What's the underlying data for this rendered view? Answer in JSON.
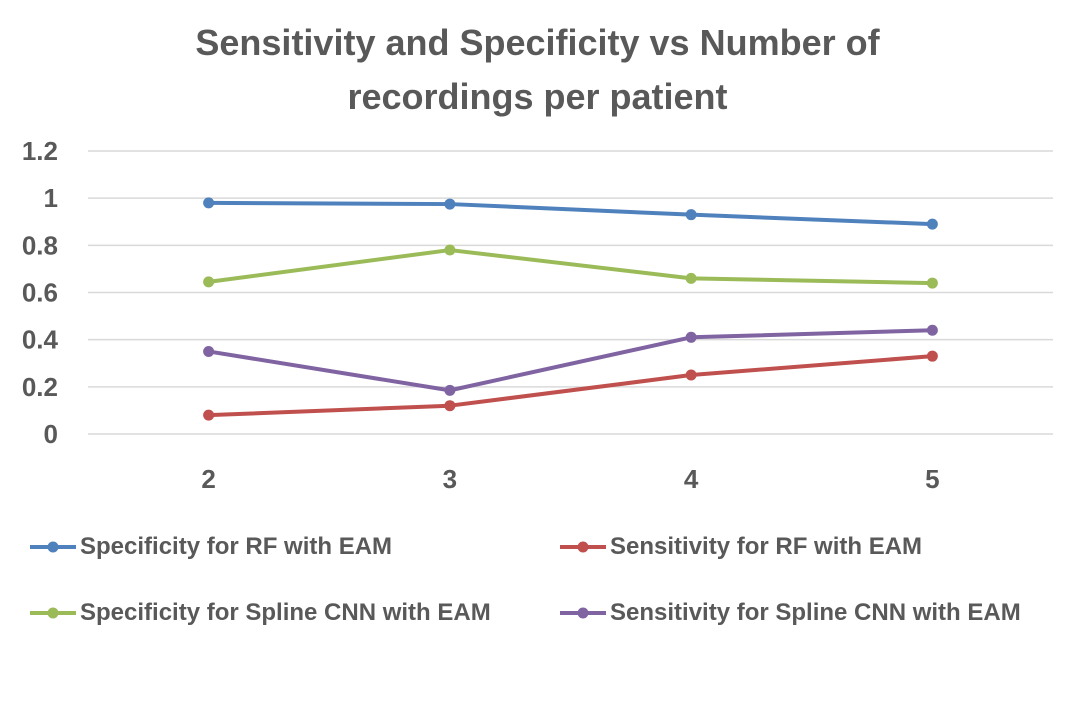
{
  "chart_data": {
    "type": "line",
    "title_line1": "Sensitivity and Specificity vs Number of",
    "title_line2": "recordings per patient",
    "categories": [
      "2",
      "3",
      "4",
      "5"
    ],
    "ylim": [
      0,
      1.2
    ],
    "yticks": [
      "0",
      "0.2",
      "0.4",
      "0.6",
      "0.8",
      "1",
      "1.2"
    ],
    "grid": true,
    "legend_position": "bottom",
    "series": [
      {
        "name": "Specificity for RF with EAM",
        "color": "#4F81BD",
        "values": [
          0.98,
          0.975,
          0.93,
          0.89
        ]
      },
      {
        "name": "Sensitivity for RF with EAM",
        "color": "#C0504D",
        "values": [
          0.08,
          0.12,
          0.25,
          0.33
        ]
      },
      {
        "name": "Specificity for Spline CNN with EAM",
        "color": "#9BBB59",
        "values": [
          0.645,
          0.78,
          0.66,
          0.64
        ]
      },
      {
        "name": "Sensitivity for Spline CNN with EAM",
        "color": "#8064A2",
        "values": [
          0.35,
          0.185,
          0.41,
          0.44
        ]
      }
    ]
  }
}
